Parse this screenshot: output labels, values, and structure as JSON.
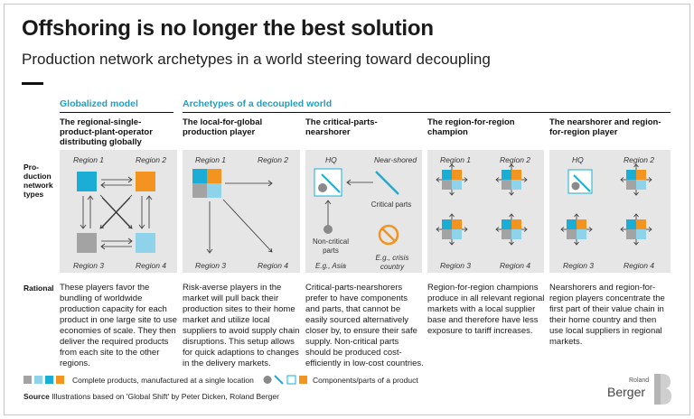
{
  "title": "Offshoring is no longer the best solution",
  "subtitle": "Production network archetypes in a world steering toward decoupling",
  "groups": {
    "globalized": "Globalized model",
    "decoupled": "Archetypes of a decoupled world"
  },
  "row_labels": {
    "types": "Pro-\nduction\nnetwork\ntypes",
    "rational": "Rational"
  },
  "columns": [
    {
      "title": "The regional-single-product-plant-operator distributing globally",
      "regions": [
        "Region 1",
        "Region 2",
        "Region 3",
        "Region 4"
      ],
      "description": "These players favor the bundling of worldwide production capacity for each product in one large site to use economies of scale. They then deliver the required products from each site to the other regions."
    },
    {
      "title": "The local-for-global production player",
      "regions": [
        "Region 1",
        "Region 2",
        "Region 3",
        "Region 4"
      ],
      "description": "Risk-averse players in the market will pull back their production sites to their home market and utilize local suppliers to avoid supply chain disruptions. This setup allows for quick adaptions to changes in the delivery markets."
    },
    {
      "title": "The critical-parts-nearshorer",
      "regions": [
        "HQ",
        "Near-shored"
      ],
      "annotations": {
        "critical_parts": "Critical parts",
        "non_critical": "Non-critical parts",
        "asia": "E.g., Asia",
        "crisis": "E.g., crisis country"
      },
      "description": "Critical-parts-nearshorers prefer to have components and parts, that cannot be easily sourced alternatively closer by, to ensure their safe supply. Non-critical parts should be produced cost-efficiently in low-cost countries."
    },
    {
      "title": "The region-for-region champion",
      "regions": [
        "Region 1",
        "Region 2",
        "Region 3",
        "Region 4"
      ],
      "description": "Region-for-region champions produce in all relevant regional markets with a local supplier base and therefore have less exposure to tariff increases."
    },
    {
      "title": "The nearshorer and region-for-region player",
      "regions": [
        "HQ",
        "Region 2",
        "Region 3",
        "Region 4"
      ],
      "description": "Nearshorers and region-for-region players concentrate the first part of their value chain in their home country and then use local suppliers in regional markets."
    }
  ],
  "legend": {
    "complete": "Complete products, manufactured at a single location",
    "components": "Components/parts of a product"
  },
  "source": {
    "label": "Source",
    "text": "Illustrations based on 'Global Shift' by Peter Dicken, Roland Berger"
  },
  "logo": {
    "small": "Roland",
    "big": "Berger"
  },
  "colors": {
    "blue": "#1aaed6",
    "light_blue": "#8fd3ea",
    "orange": "#f39320",
    "gray": "#a3a3a3",
    "panel": "#e6e6e6",
    "accent_text": "#1da1c5",
    "crisis": "#f39320"
  }
}
